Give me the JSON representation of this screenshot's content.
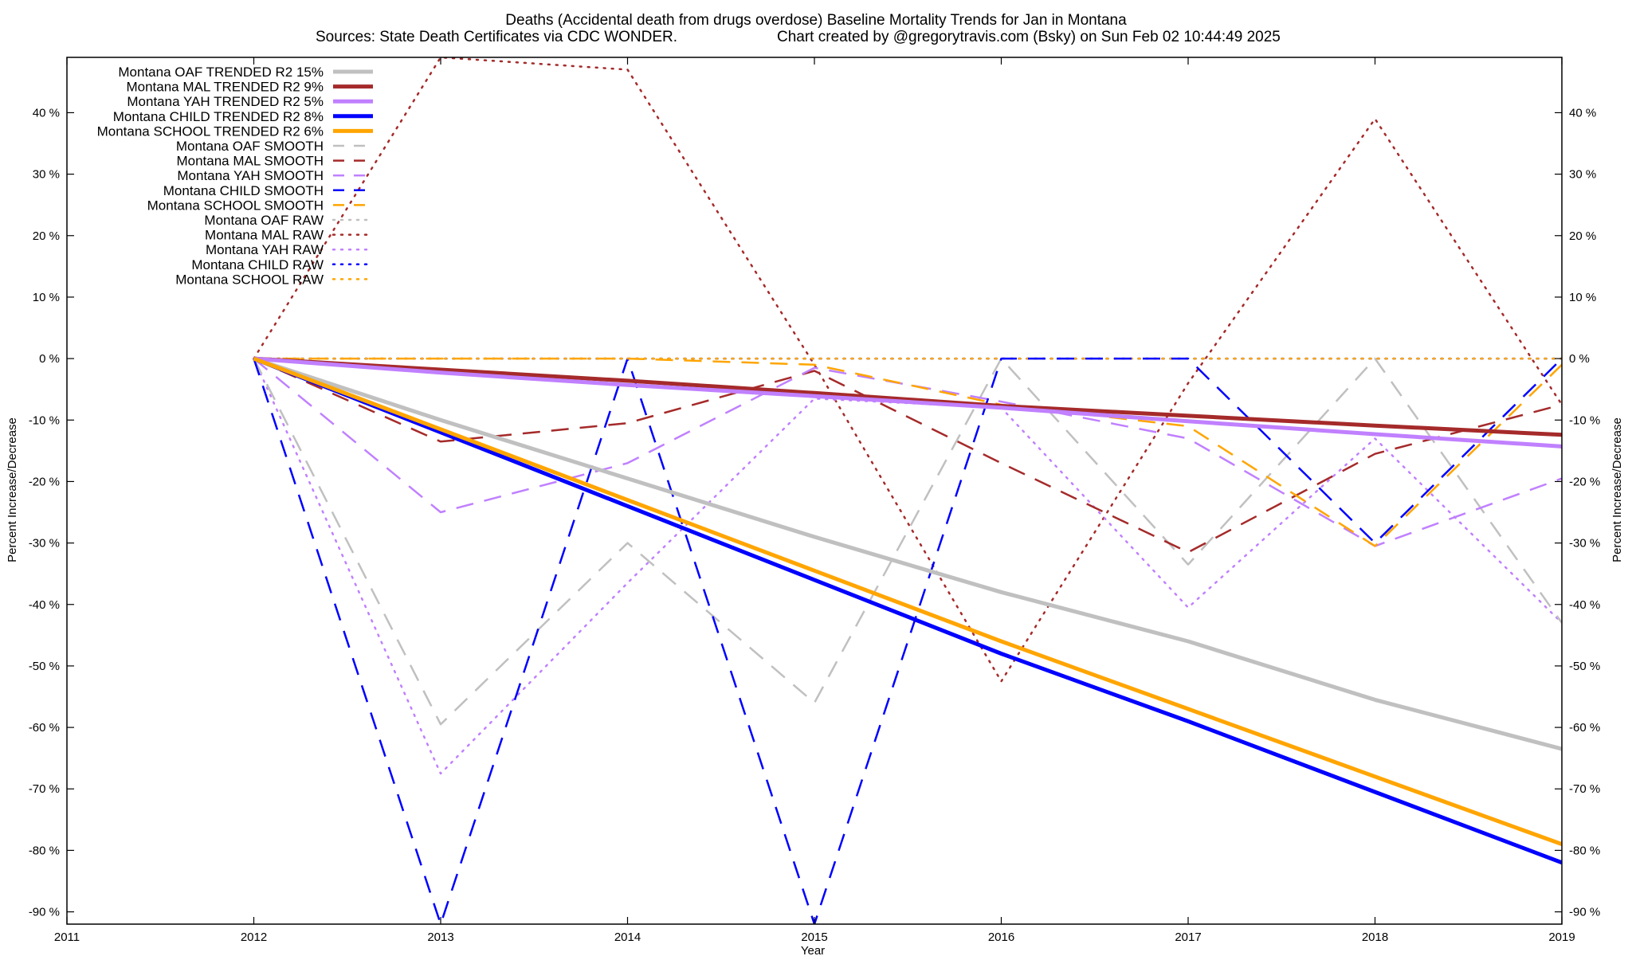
{
  "chart_data": {
    "type": "line",
    "title": "Deaths (Accidental death from drugs overdose)  Baseline Mortality Trends for Jan in Montana",
    "subtitle_left": "Sources: State Death Certificates via CDC WONDER.",
    "subtitle_right": "Chart created by @gregorytravis.com (Bsky) on Sun Feb 02 10:44:49 2025",
    "xlabel": "Year",
    "ylabel_left": "Percent Increase/Decrease",
    "ylabel_right": "Percent Increase/Decrease",
    "xlim": [
      2011,
      2019
    ],
    "ylim": [
      -92,
      49
    ],
    "x_ticks": [
      2011,
      2012,
      2013,
      2014,
      2015,
      2016,
      2017,
      2018,
      2019
    ],
    "x_tick_labels": [
      "2011",
      "2012",
      "2013",
      "2014",
      "2015",
      "2016",
      "2017",
      "2018",
      "2019"
    ],
    "y_ticks": [
      40,
      30,
      20,
      10,
      0,
      -10,
      -20,
      -30,
      -40,
      -50,
      -60,
      -70,
      -80,
      -90
    ],
    "y_tick_labels_left": [
      "40 %",
      "30 %",
      "20 %",
      "10 %",
      "0 %",
      "-10 %",
      "-20 %",
      "-30 %",
      "-40 %",
      "-50 %",
      "-60 %",
      "-70 %",
      "-80 %",
      "-90 %"
    ],
    "y_tick_labels_right": [
      "40 %",
      "30 %",
      "20 %",
      "10 %",
      "0 %",
      "-10 %",
      "-20 %",
      "-30 %",
      "-40 %",
      "-50 %",
      "-60 %",
      "-70 %",
      "-80 %",
      "-90 %"
    ],
    "grid": false,
    "legend_position": "top-left",
    "series": [
      {
        "name": "Montana OAF TRENDED R2  15%",
        "style": "solid",
        "color": "#c0c0c0",
        "x": [
          2012,
          2013,
          2014,
          2015,
          2016,
          2017,
          2018,
          2019
        ],
        "y": [
          0,
          -10,
          -19.5,
          -29,
          -38,
          -46,
          -55.5,
          -63.5
        ]
      },
      {
        "name": "Montana MAL TRENDED R2  9%",
        "style": "solid",
        "color": "#a52a2a",
        "x": [
          2012,
          2013,
          2014,
          2015,
          2016,
          2017,
          2018,
          2019
        ],
        "y": [
          0,
          -1.8,
          -3.6,
          -5.6,
          -7.7,
          -9.3,
          -10.9,
          -12.4
        ]
      },
      {
        "name": "Montana YAH TRENDED R2  5%",
        "style": "solid",
        "color": "#c080ff",
        "x": [
          2012,
          2013,
          2014,
          2015,
          2016,
          2017,
          2018,
          2019
        ],
        "y": [
          0,
          -2.3,
          -4.3,
          -6.1,
          -8.0,
          -10.2,
          -12.3,
          -14.3
        ]
      },
      {
        "name": "Montana CHILD TRENDED R2  8%",
        "style": "solid",
        "color": "#0000ff",
        "x": [
          2012,
          2013,
          2014,
          2015,
          2016,
          2017,
          2018,
          2019
        ],
        "y": [
          0,
          -12,
          -24,
          -36,
          -48,
          -59,
          -70.5,
          -82
        ]
      },
      {
        "name": "Montana SCHOOL TRENDED R2  6%",
        "style": "solid",
        "color": "#ffa500",
        "x": [
          2012,
          2013,
          2014,
          2015,
          2016,
          2017,
          2018,
          2019
        ],
        "y": [
          0,
          -11.5,
          -23,
          -34.5,
          -46,
          -57,
          -68,
          -79
        ]
      },
      {
        "name": "Montana OAF SMOOTH",
        "style": "dashed",
        "color": "#c0c0c0",
        "x": [
          2012,
          2013,
          2014,
          2015,
          2016,
          2017,
          2018,
          2019
        ],
        "y": [
          0,
          -59.5,
          -30,
          -56,
          0,
          -33.5,
          0,
          -43
        ]
      },
      {
        "name": "Montana MAL SMOOTH",
        "style": "dashed",
        "color": "#a52a2a",
        "x": [
          2012,
          2013,
          2014,
          2015,
          2016,
          2017,
          2018,
          2019
        ],
        "y": [
          0,
          -13.5,
          -10.5,
          -2,
          -17,
          -31.5,
          -15.5,
          -7.5
        ]
      },
      {
        "name": "Montana YAH SMOOTH",
        "style": "dashed",
        "color": "#c080ff",
        "x": [
          2012,
          2013,
          2014,
          2015,
          2016,
          2017,
          2018,
          2019
        ],
        "y": [
          0,
          -25,
          -17,
          -1.5,
          -7,
          -13,
          -30.5,
          -19.5
        ]
      },
      {
        "name": "Montana CHILD SMOOTH",
        "style": "dashed",
        "color": "#0000ff",
        "x": [
          2012,
          2013,
          2014,
          2015,
          2016,
          2017,
          2018,
          2019
        ],
        "y": [
          0,
          -92,
          0,
          -92,
          0,
          0,
          -30,
          0
        ]
      },
      {
        "name": "Montana SCHOOL SMOOTH",
        "style": "dashed",
        "color": "#ffa500",
        "x": [
          2012,
          2013,
          2014,
          2015,
          2016,
          2017,
          2018,
          2019
        ],
        "y": [
          0,
          0,
          0,
          -1,
          -7.5,
          -11,
          -30.5,
          -1
        ]
      },
      {
        "name": "Montana OAF RAW",
        "style": "dotted",
        "color": "#c0c0c0",
        "x": [
          2012,
          2013,
          2014,
          2015,
          2016,
          2017,
          2018,
          2019
        ],
        "y": [
          0,
          0,
          0,
          0,
          0,
          0,
          0,
          0
        ]
      },
      {
        "name": "Montana MAL RAW",
        "style": "dotted",
        "color": "#a52a2a",
        "x": [
          2012,
          2013,
          2014,
          2015,
          2016,
          2017,
          2018,
          2019
        ],
        "y": [
          0,
          49,
          47,
          -1,
          -52.5,
          -4,
          39,
          -7.5
        ]
      },
      {
        "name": "Montana YAH RAW",
        "style": "dotted",
        "color": "#c080ff",
        "x": [
          2012,
          2013,
          2014,
          2015,
          2016,
          2017,
          2018,
          2019
        ],
        "y": [
          0,
          -67.5,
          -36.5,
          -6.5,
          -8,
          -40.5,
          -13,
          -43
        ]
      },
      {
        "name": "Montana CHILD RAW",
        "style": "dotted",
        "color": "#0000ff",
        "x": [
          2012,
          2013,
          2014,
          2015,
          2016,
          2017,
          2018,
          2019
        ],
        "y": [
          0,
          0,
          0,
          0,
          0,
          0,
          0,
          0
        ]
      },
      {
        "name": "Montana SCHOOL RAW",
        "style": "dotted",
        "color": "#ffa500",
        "x": [
          2012,
          2013,
          2014,
          2015,
          2016,
          2017,
          2018,
          2019
        ],
        "y": [
          0,
          0,
          0,
          0,
          0,
          0,
          0,
          0
        ]
      }
    ]
  }
}
